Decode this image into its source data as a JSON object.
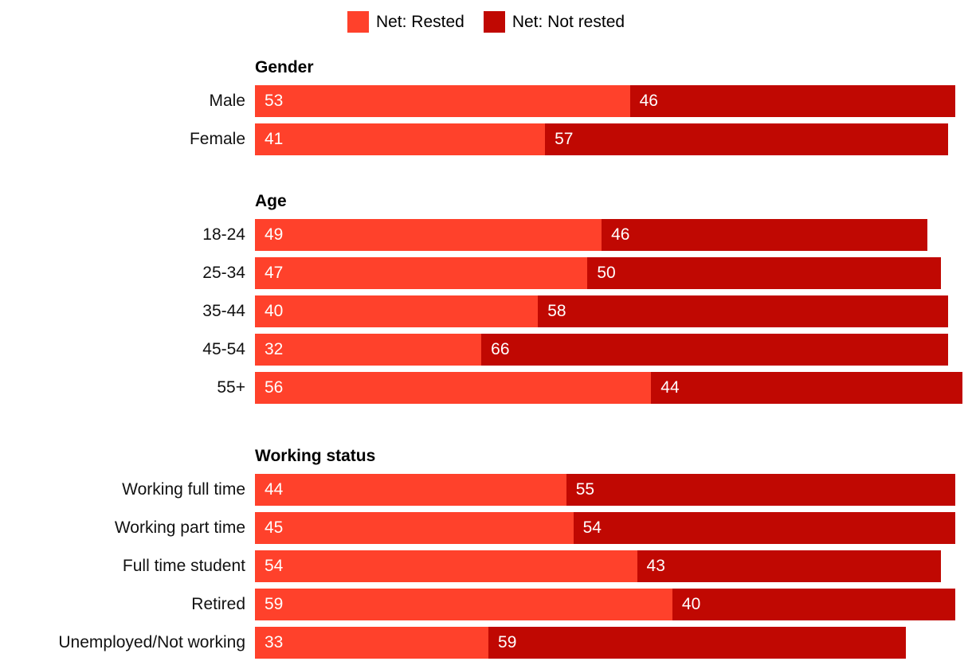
{
  "colors": {
    "rested": "#FF412B",
    "not_rested": "#C00802",
    "category_text": "#111111",
    "value_text": "#FFFFFF",
    "header_text": "#000000",
    "background": "#FFFFFF"
  },
  "legend": {
    "items": [
      {
        "label": "Net: Rested",
        "color_key": "rested"
      },
      {
        "label": "Net: Not rested",
        "color_key": "not_rested"
      }
    ]
  },
  "chart_data": {
    "type": "bar",
    "orientation": "horizontal",
    "stacked": true,
    "value_unit": "percent",
    "xlim": [
      0,
      100
    ],
    "value_labels": "inside-start",
    "legend_position": "top-center",
    "series": [
      {
        "name": "Net: Rested",
        "key": "rested",
        "color_key": "rested"
      },
      {
        "name": "Net: Not rested",
        "key": "not_rested",
        "color_key": "not_rested"
      }
    ],
    "groups": [
      {
        "title": "Gender",
        "rows": [
          {
            "label": "Male",
            "rested": 53,
            "not_rested": 46
          },
          {
            "label": "Female",
            "rested": 41,
            "not_rested": 57
          }
        ]
      },
      {
        "title": "Age",
        "rows": [
          {
            "label": "18-24",
            "rested": 49,
            "not_rested": 46
          },
          {
            "label": "25-34",
            "rested": 47,
            "not_rested": 50
          },
          {
            "label": "35-44",
            "rested": 40,
            "not_rested": 58
          },
          {
            "label": "45-54",
            "rested": 32,
            "not_rested": 66
          },
          {
            "label": "55+",
            "rested": 56,
            "not_rested": 44
          }
        ]
      },
      {
        "title": "Working status",
        "rows": [
          {
            "label": "Working full time",
            "rested": 44,
            "not_rested": 55
          },
          {
            "label": "Working part time",
            "rested": 45,
            "not_rested": 54
          },
          {
            "label": "Full time student",
            "rested": 54,
            "not_rested": 43
          },
          {
            "label": "Retired",
            "rested": 59,
            "not_rested": 40
          },
          {
            "label": "Unemployed/Not working",
            "rested": 33,
            "not_rested": 59
          }
        ]
      }
    ]
  }
}
